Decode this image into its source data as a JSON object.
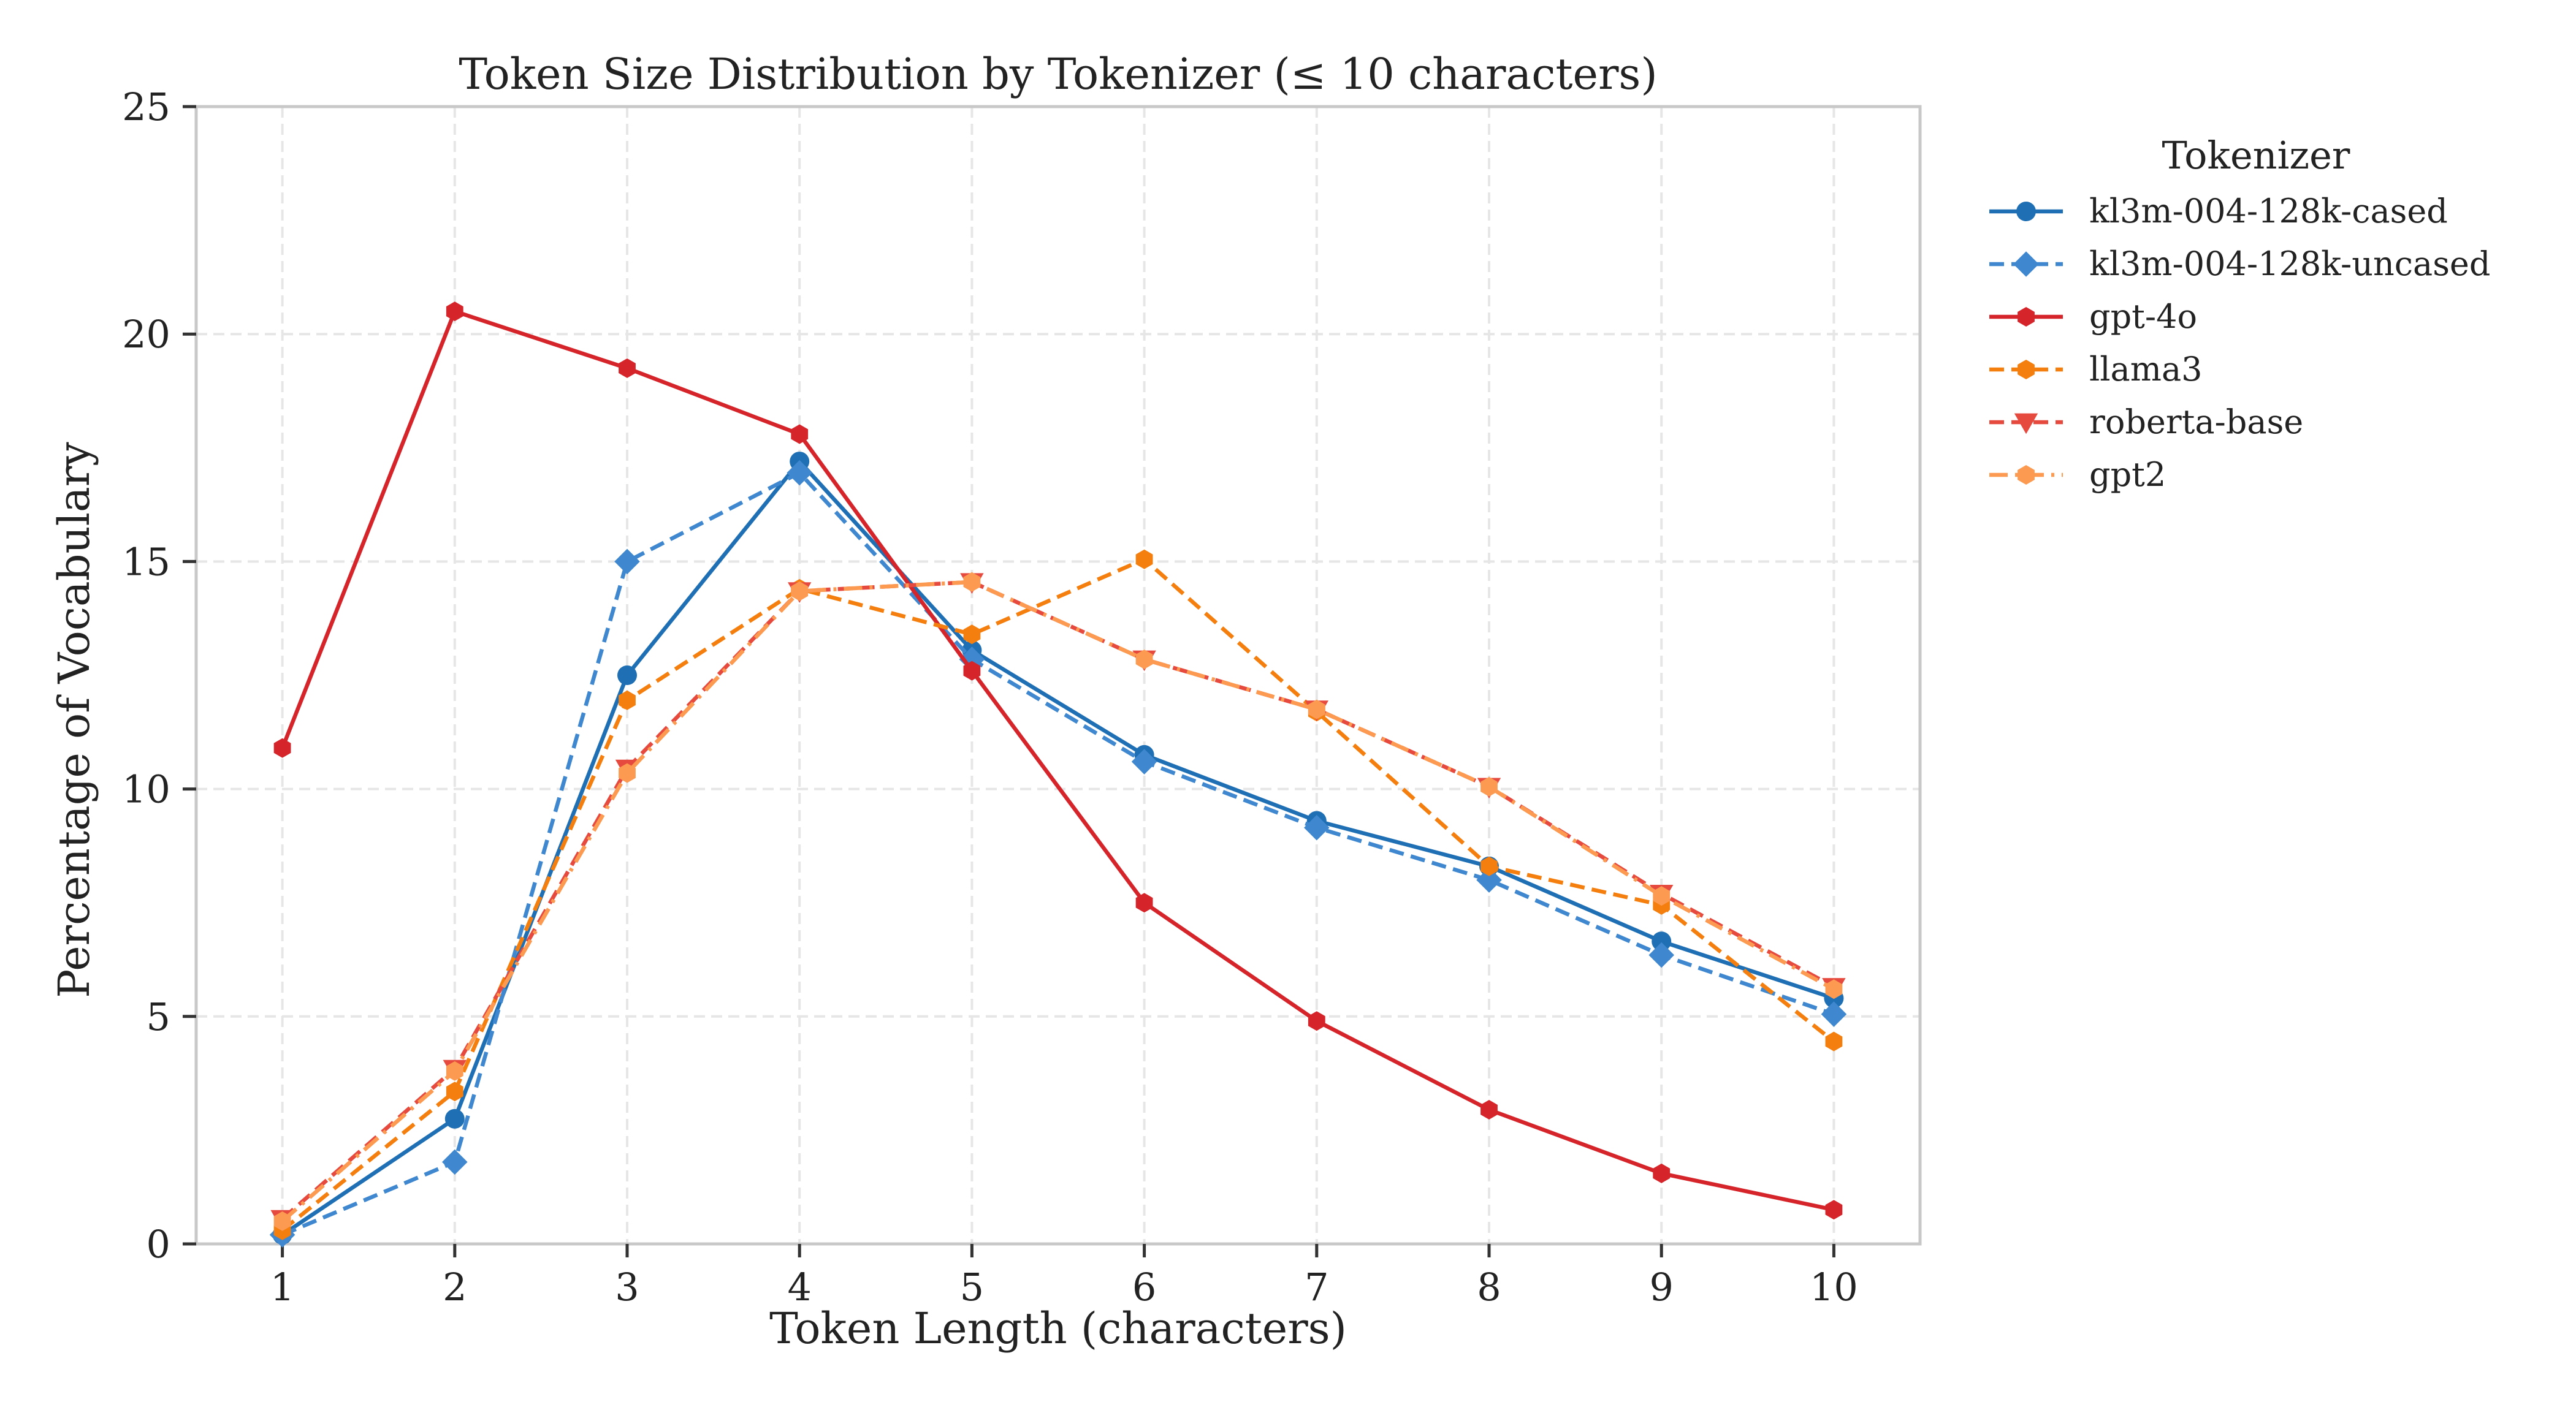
{
  "chart_data": {
    "type": "line",
    "title": "Token Size Distribution by Tokenizer (≤ 10 characters)",
    "xlabel": "Token Length (characters)",
    "ylabel": "Percentage of Vocabulary",
    "x": [
      1,
      2,
      3,
      4,
      5,
      6,
      7,
      8,
      9,
      10
    ],
    "x_tick_labels": [
      "1",
      "2",
      "3",
      "4",
      "5",
      "6",
      "7",
      "8",
      "9",
      "10"
    ],
    "ylim": [
      0,
      25
    ],
    "y_tick_labels": [
      "0",
      "5",
      "10",
      "15",
      "20",
      "25"
    ],
    "grid": true,
    "legend": {
      "title": "Tokenizer",
      "placement": "outside-right-top"
    },
    "series": [
      {
        "name": "kl3m-004-128k-cased",
        "color": "#1f6fb4",
        "marker": "circle",
        "dash": "solid",
        "values": [
          0.2,
          2.75,
          12.5,
          17.2,
          13.05,
          10.75,
          9.3,
          8.3,
          6.65,
          5.4
        ]
      },
      {
        "name": "kl3m-004-128k-uncased",
        "color": "#3f88cf",
        "marker": "diamond",
        "dash": "dashed",
        "values": [
          0.2,
          1.8,
          15.0,
          16.95,
          12.85,
          10.6,
          9.15,
          8.0,
          6.35,
          5.05
        ]
      },
      {
        "name": "gpt-4o",
        "color": "#d6252a",
        "marker": "hexagon",
        "dash": "solid",
        "values": [
          10.9,
          20.5,
          19.25,
          17.8,
          12.6,
          7.5,
          4.9,
          2.95,
          1.55,
          0.75
        ]
      },
      {
        "name": "llama3",
        "color": "#f57f0e",
        "marker": "hexagon",
        "dash": "dashed",
        "values": [
          0.3,
          3.35,
          11.95,
          14.4,
          13.4,
          15.05,
          11.7,
          8.3,
          7.45,
          4.45
        ]
      },
      {
        "name": "roberta-base",
        "color": "#e64a3e",
        "marker": "triangle-down",
        "dash": "dashed",
        "values": [
          0.55,
          3.85,
          10.45,
          14.35,
          14.55,
          12.85,
          11.75,
          10.05,
          7.7,
          5.65
        ]
      },
      {
        "name": "gpt2",
        "color": "#fb9a50",
        "marker": "hexagon",
        "dash": "dashdot",
        "values": [
          0.5,
          3.8,
          10.35,
          14.35,
          14.55,
          12.85,
          11.75,
          10.05,
          7.65,
          5.6
        ]
      }
    ]
  }
}
